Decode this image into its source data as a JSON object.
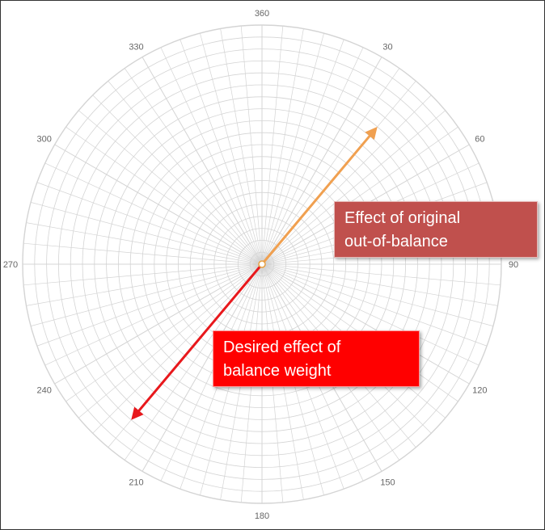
{
  "polar_chart": {
    "angle_labels": [
      360,
      30,
      60,
      90,
      120,
      150,
      180,
      210,
      240,
      270,
      300,
      330
    ],
    "radial_grid_step_deg": 5,
    "ring_count": 20,
    "grid_color": "#d4d4d4"
  },
  "vectors": [
    {
      "name": "original-out-of-balance",
      "angle_deg": 40,
      "magnitude": 0.74,
      "color": "#f0a050"
    },
    {
      "name": "desired-balance-weight",
      "angle_deg": 220,
      "magnitude": 0.84,
      "color": "#e8181c"
    }
  ],
  "callouts": {
    "original": {
      "line1": "Effect of original",
      "line2": "out-of-balance",
      "bg_color": "#c0504d"
    },
    "desired": {
      "line1": "Desired effect of",
      "line2": "balance weight",
      "bg_color": "#ff0000"
    }
  }
}
